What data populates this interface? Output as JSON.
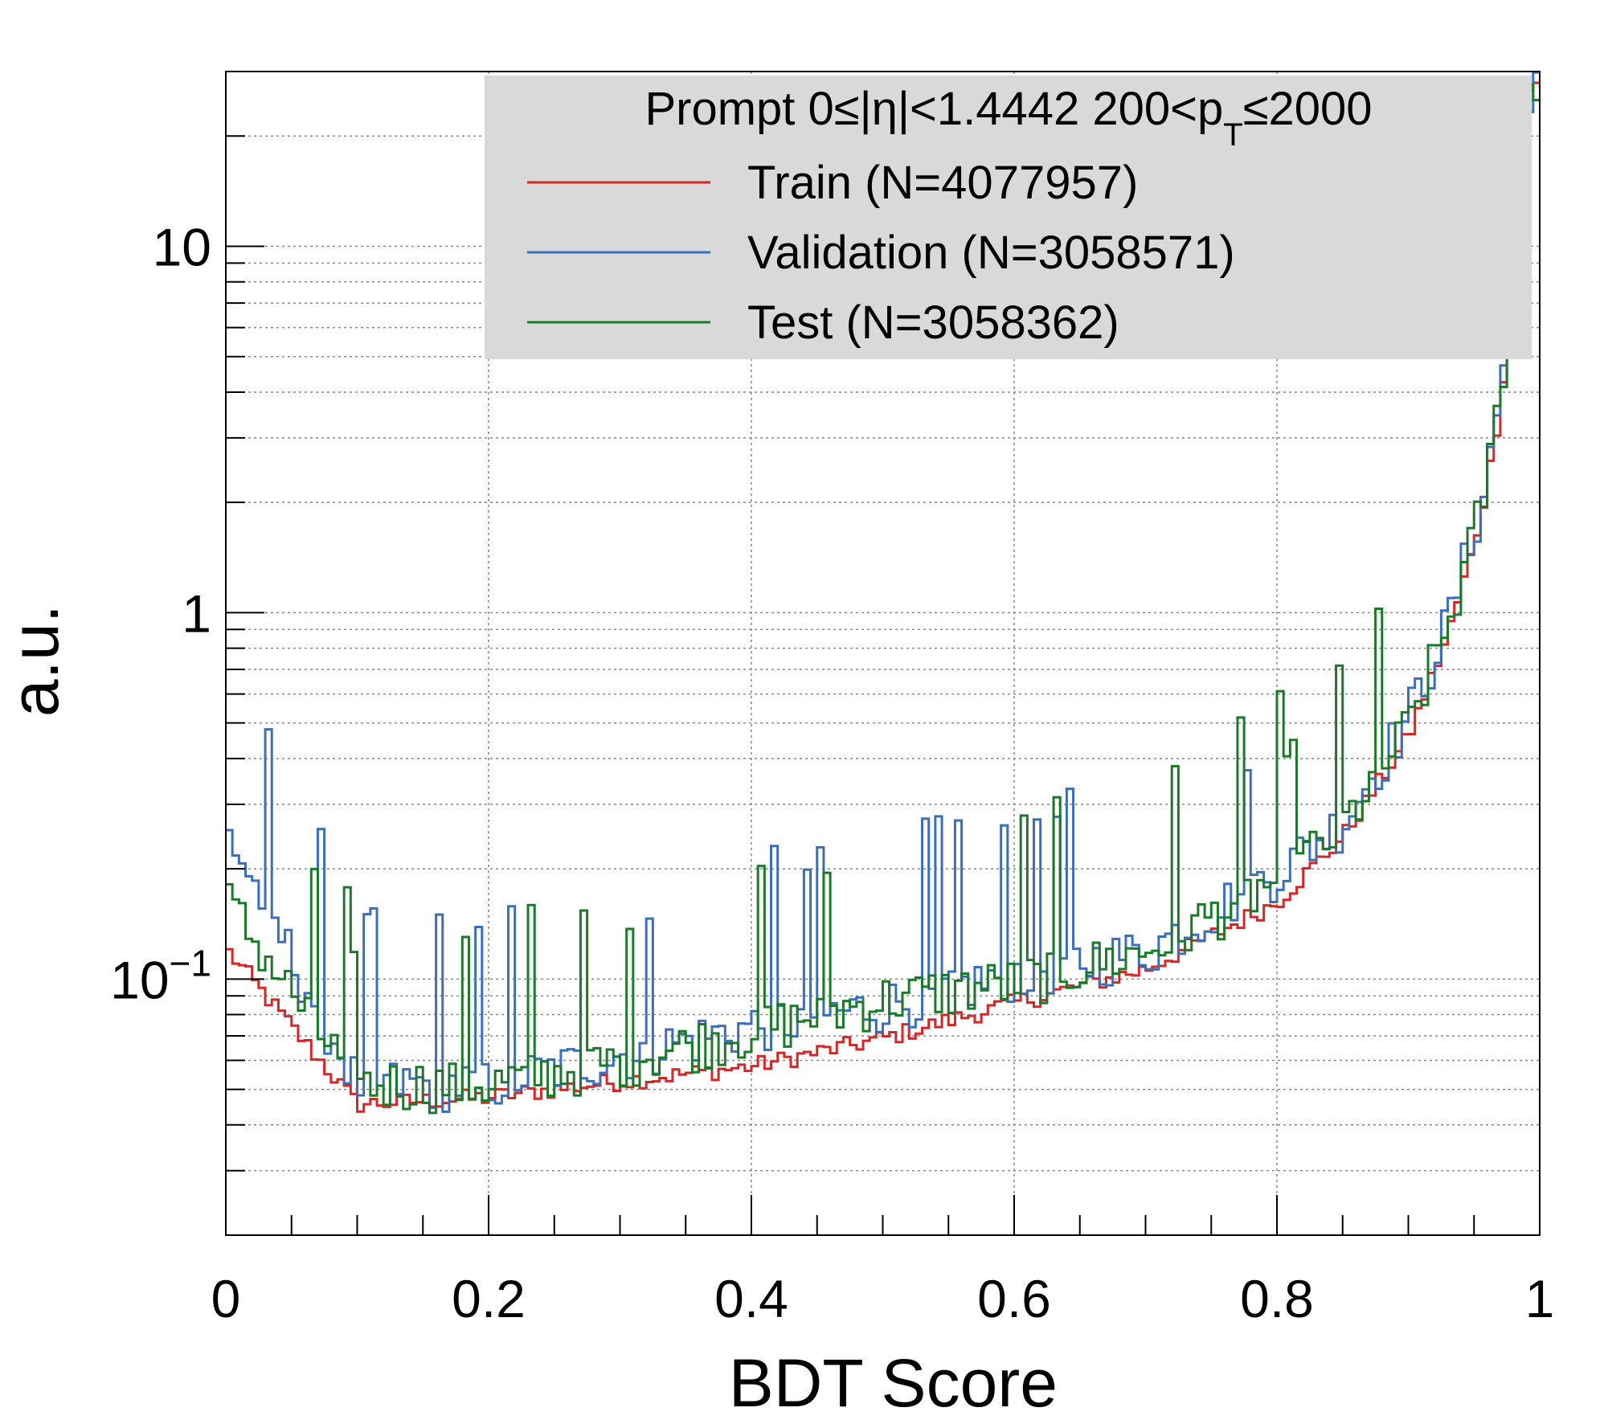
{
  "chart_data": {
    "type": "line",
    "xlabel": "BDT Score",
    "ylabel": "a.u.",
    "xlim": [
      0,
      1
    ],
    "ylim": [
      0.02,
      30
    ],
    "y_scale": "log",
    "grid": true,
    "x_ticks": [
      "0",
      "0.2",
      "0.4",
      "0.6",
      "0.8",
      "1"
    ],
    "y_ticks": [
      {
        "value": 10,
        "label": "10"
      },
      {
        "value": 1,
        "label": "1"
      },
      {
        "value": 0.1,
        "base": "10",
        "exp": "−1"
      }
    ],
    "legend": {
      "placement": "top-right",
      "header": {
        "pre": "Prompt  0≤|η|<1.4442  200<p",
        "sub": "T",
        "post": "≤2000"
      }
    },
    "x": [
      0.0,
      0.1,
      0.2,
      0.3,
      0.4,
      0.5,
      0.6,
      0.7,
      0.8,
      0.85,
      0.9,
      0.93,
      0.95,
      0.96,
      0.97,
      0.98,
      0.99,
      1.0
    ],
    "series": [
      {
        "name": "Train (N=4077957)",
        "color": "#d62728",
        "values": [
          0.12,
          0.045,
          0.047,
          0.052,
          0.057,
          0.068,
          0.085,
          0.105,
          0.16,
          0.24,
          0.45,
          0.85,
          1.5,
          2.2,
          3.6,
          8.0,
          25.0,
          28.0
        ]
      },
      {
        "name": "Validation (N=3058571)",
        "color": "#3b6fba",
        "values": [
          0.25,
          0.05,
          0.05,
          0.06,
          0.072,
          0.082,
          0.1,
          0.115,
          0.19,
          0.26,
          0.5,
          0.9,
          1.6,
          2.3,
          3.8,
          8.5,
          26.0,
          29.0
        ]
      },
      {
        "name": "Test (N=3058362)",
        "color": "#1b7a2a",
        "values": [
          0.16,
          0.05,
          0.05,
          0.058,
          0.07,
          0.085,
          0.095,
          0.115,
          0.18,
          0.25,
          0.47,
          0.88,
          1.55,
          2.25,
          3.7,
          9.5,
          27.0,
          28.5
        ]
      }
    ]
  }
}
